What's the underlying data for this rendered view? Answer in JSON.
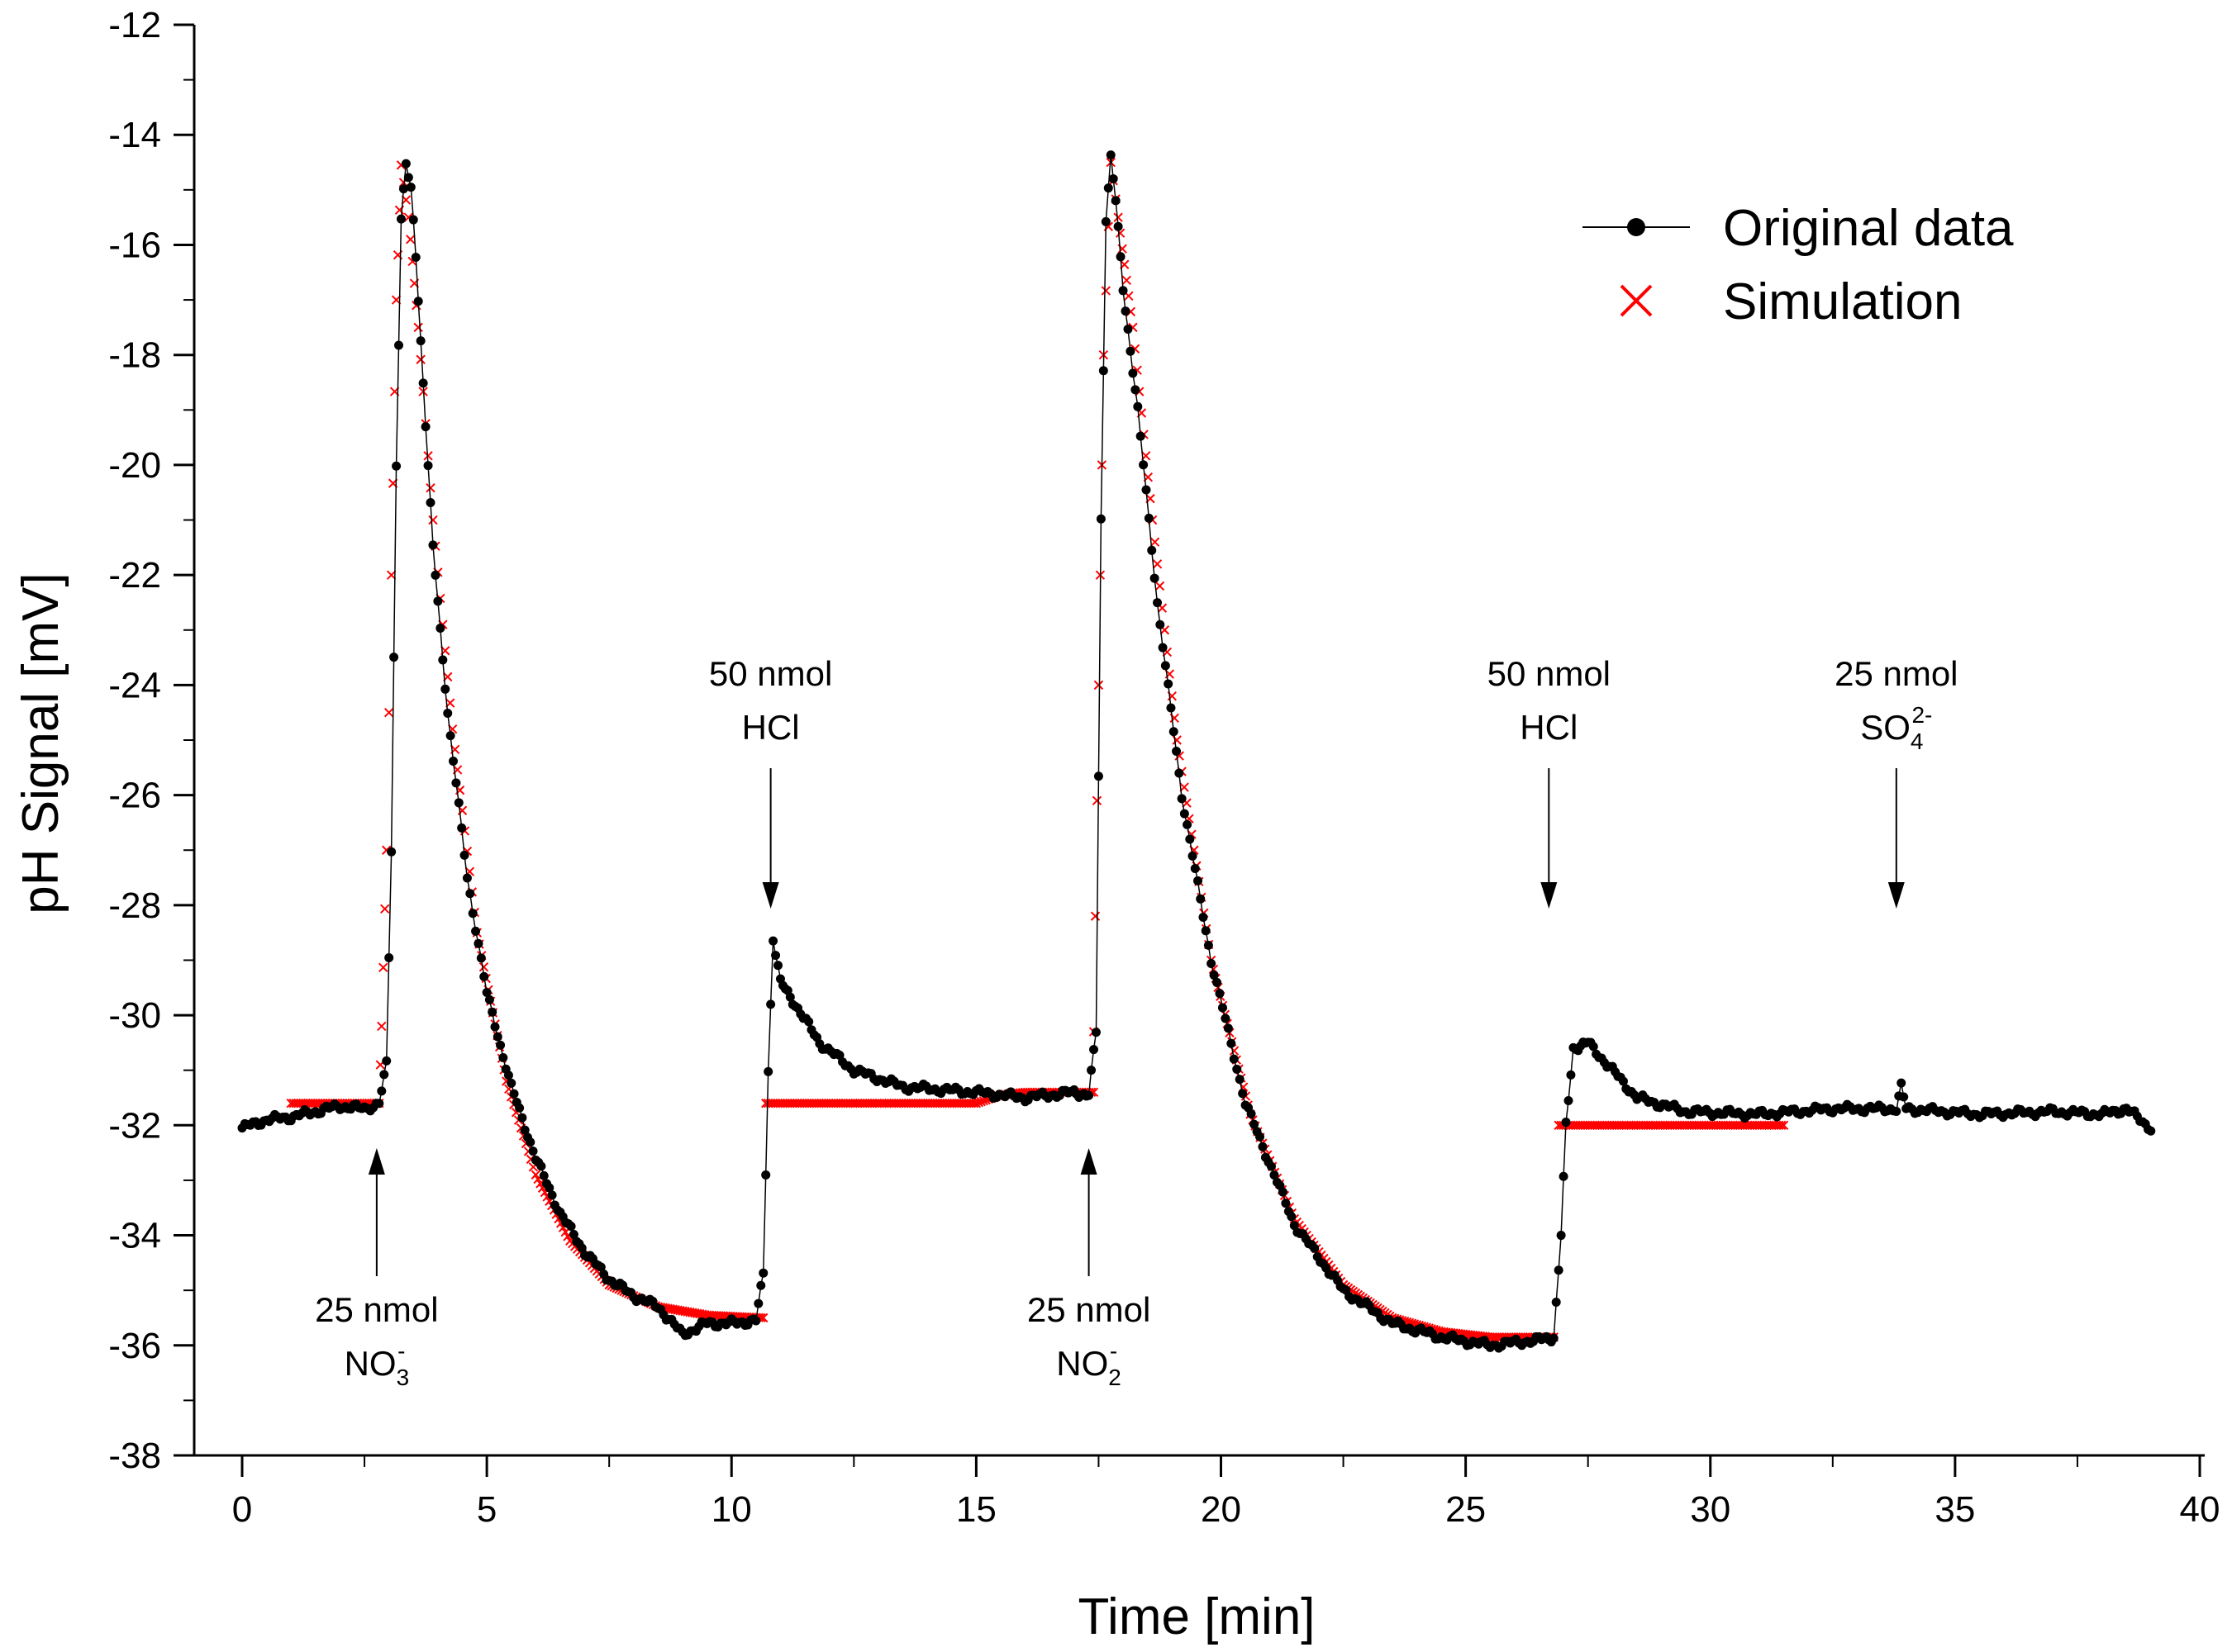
{
  "chart_data": {
    "type": "line",
    "xlabel": "Time [min]",
    "ylabel": "pH Signal [mV]",
    "xlim": [
      0,
      40
    ],
    "ylim": [
      -38,
      -12
    ],
    "x_ticks": [
      "0",
      "5",
      "10",
      "15",
      "20",
      "25",
      "30",
      "35",
      "40"
    ],
    "y_ticks": [
      "-12",
      "-14",
      "-16",
      "-18",
      "-20",
      "-22",
      "-24",
      "-26",
      "-28",
      "-30",
      "-32",
      "-34",
      "-36",
      "-38"
    ],
    "legend": {
      "position": "top-right",
      "entries": [
        "Original data",
        "Simulation"
      ]
    },
    "series": [
      {
        "name": "Original data",
        "color": "#000000",
        "marker": "circle",
        "segments": [
          [
            [
              0,
              -32.05
            ],
            [
              0.5,
              -31.9
            ],
            [
              1,
              -31.85
            ],
            [
              1.5,
              -31.75
            ],
            [
              2,
              -31.65
            ],
            [
              2.5,
              -31.7
            ],
            [
              2.8,
              -31.6
            ],
            [
              2.95,
              -30.9
            ],
            [
              3.05,
              -27.0
            ],
            [
              3.15,
              -20.0
            ],
            [
              3.25,
              -15.5
            ],
            [
              3.35,
              -14.55
            ],
            [
              3.45,
              -15.0
            ],
            [
              3.55,
              -16.2
            ],
            [
              3.7,
              -18.5
            ],
            [
              3.9,
              -21.5
            ],
            [
              4.2,
              -24.5
            ],
            [
              4.6,
              -27.5
            ],
            [
              5.0,
              -29.6
            ],
            [
              5.5,
              -31.3
            ],
            [
              6.0,
              -32.6
            ],
            [
              6.5,
              -33.6
            ],
            [
              7.0,
              -34.3
            ],
            [
              7.5,
              -34.8
            ],
            [
              8.0,
              -35.1
            ],
            [
              8.5,
              -35.3
            ],
            [
              9.0,
              -35.8
            ],
            [
              9.5,
              -35.6
            ],
            [
              10.0,
              -35.6
            ],
            [
              10.5,
              -35.55
            ],
            [
              10.65,
              -34.7
            ],
            [
              10.75,
              -31.0
            ],
            [
              10.85,
              -28.6
            ],
            [
              11.0,
              -29.4
            ],
            [
              11.3,
              -29.8
            ],
            [
              11.8,
              -30.5
            ],
            [
              12.5,
              -31.0
            ],
            [
              13.5,
              -31.3
            ],
            [
              15.0,
              -31.4
            ],
            [
              16.0,
              -31.5
            ],
            [
              17.0,
              -31.4
            ],
            [
              17.3,
              -31.45
            ],
            [
              17.45,
              -30.3
            ],
            [
              17.55,
              -21.0
            ],
            [
              17.65,
              -15.5
            ],
            [
              17.75,
              -14.4
            ],
            [
              17.85,
              -15.2
            ],
            [
              18.0,
              -16.8
            ],
            [
              18.3,
              -19.0
            ],
            [
              18.7,
              -22.5
            ],
            [
              19.2,
              -26.0
            ],
            [
              19.8,
              -29.0
            ],
            [
              20.5,
              -31.6
            ],
            [
              21.5,
              -33.8
            ],
            [
              22.5,
              -35.0
            ],
            [
              23.5,
              -35.6
            ],
            [
              24.5,
              -35.85
            ],
            [
              25.5,
              -36.0
            ],
            [
              26.5,
              -35.9
            ],
            [
              26.8,
              -35.85
            ],
            [
              26.95,
              -34.0
            ],
            [
              27.05,
              -32.0
            ],
            [
              27.2,
              -30.6
            ],
            [
              27.5,
              -30.5
            ],
            [
              28.0,
              -31.0
            ],
            [
              28.5,
              -31.5
            ],
            [
              29.5,
              -31.75
            ],
            [
              31.0,
              -31.8
            ],
            [
              32.5,
              -31.7
            ],
            [
              33.8,
              -31.7
            ],
            [
              33.9,
              -31.3
            ],
            [
              34.0,
              -31.7
            ],
            [
              35.5,
              -31.8
            ],
            [
              37.0,
              -31.75
            ],
            [
              38.0,
              -31.8
            ],
            [
              38.5,
              -31.7
            ],
            [
              39.0,
              -32.05
            ]
          ]
        ]
      },
      {
        "name": "Simulation",
        "color": "#ff0000",
        "marker": "x",
        "segments": [
          [
            [
              1.0,
              -31.6
            ],
            [
              2.8,
              -31.6
            ],
            [
              2.85,
              -30.2
            ],
            [
              2.95,
              -27.0
            ],
            [
              3.05,
              -22.0
            ],
            [
              3.15,
              -17.0
            ],
            [
              3.25,
              -14.55
            ],
            [
              3.4,
              -15.5
            ],
            [
              3.6,
              -17.5
            ],
            [
              3.9,
              -21.0
            ],
            [
              4.3,
              -24.8
            ],
            [
              4.8,
              -28.5
            ],
            [
              5.4,
              -31.2
            ],
            [
              6.0,
              -32.9
            ],
            [
              6.7,
              -34.1
            ],
            [
              7.5,
              -34.9
            ],
            [
              8.5,
              -35.3
            ],
            [
              9.5,
              -35.45
            ],
            [
              10.65,
              -35.5
            ]
          ],
          [
            [
              10.7,
              -31.6
            ],
            [
              15.0,
              -31.6
            ],
            [
              15.5,
              -31.45
            ],
            [
              16.0,
              -31.4
            ],
            [
              17.4,
              -31.4
            ]
          ],
          [
            [
              17.4,
              -30.3
            ],
            [
              17.5,
              -24.0
            ],
            [
              17.6,
              -18.0
            ],
            [
              17.75,
              -14.5
            ],
            [
              17.9,
              -15.5
            ],
            [
              18.2,
              -17.5
            ],
            [
              18.6,
              -21.0
            ],
            [
              19.1,
              -25.0
            ],
            [
              19.8,
              -29.0
            ],
            [
              20.6,
              -31.8
            ],
            [
              21.5,
              -33.7
            ],
            [
              22.5,
              -34.9
            ],
            [
              23.5,
              -35.5
            ],
            [
              24.5,
              -35.75
            ],
            [
              25.5,
              -35.85
            ],
            [
              26.8,
              -35.85
            ]
          ],
          [
            [
              26.9,
              -32.0
            ],
            [
              31.5,
              -32.0
            ]
          ]
        ]
      }
    ],
    "annotations": [
      {
        "line1": "25 nmol",
        "base": "NO",
        "sub": "3",
        "sup": "-",
        "x": 2.75,
        "arrow": "up"
      },
      {
        "line1": "50 nmol",
        "base": "HCl",
        "sub": "",
        "sup": "",
        "x": 10.8,
        "arrow": "down"
      },
      {
        "line1": "25 nmol",
        "base": "NO",
        "sub": "2",
        "sup": "-",
        "x": 17.3,
        "arrow": "up"
      },
      {
        "line1": "50 nmol",
        "base": "HCl",
        "sub": "",
        "sup": "",
        "x": 26.7,
        "arrow": "down"
      },
      {
        "line1": "25 nmol",
        "base": "SO",
        "sub": "4",
        "sup": "2-",
        "x": 33.8,
        "arrow": "down"
      }
    ]
  }
}
